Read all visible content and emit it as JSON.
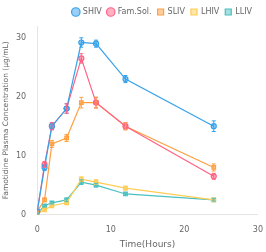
{
  "chart_data": {
    "type": "line",
    "xlabel": "Time(Hours)",
    "ylabel": "Famotidine Plasma Concentration (μg/mL)",
    "xlim": [
      0,
      30
    ],
    "ylim": [
      0,
      32
    ],
    "xticks": [
      0,
      10,
      20,
      30
    ],
    "yticks": [
      0,
      10,
      20,
      30
    ],
    "grid": false,
    "legend": "upper right",
    "x": [
      0,
      1,
      2,
      4,
      6,
      8,
      12,
      24
    ],
    "series": [
      {
        "name": "SHIV",
        "marker": "circle",
        "values": [
          0.5,
          8.0,
          15.0,
          18.0,
          29.2,
          29.0,
          23.0,
          15.0
        ],
        "yerr": [
          0.1,
          0.5,
          0.6,
          0.8,
          0.8,
          0.6,
          0.6,
          0.9
        ]
      },
      {
        "name": "Fam.Sol.",
        "marker": "circle",
        "values": [
          0.5,
          8.5,
          15.0,
          18.0,
          26.5,
          19.0,
          15.0,
          6.5
        ],
        "yerr": [
          0.1,
          0.5,
          0.6,
          0.8,
          0.8,
          0.9,
          0.6,
          0.5
        ]
      },
      {
        "name": "SLIV",
        "marker": "square",
        "values": [
          0.5,
          2.5,
          12.0,
          13.0,
          19.0,
          19.0,
          15.0,
          8.0
        ],
        "yerr": [
          0.1,
          0.3,
          0.6,
          0.6,
          0.9,
          0.9,
          0.6,
          0.6
        ]
      },
      {
        "name": "LHIV",
        "marker": "square",
        "values": [
          0.2,
          0.8,
          1.5,
          2.0,
          6.0,
          5.5,
          4.5,
          2.5
        ],
        "yerr": [
          0.1,
          0.2,
          0.2,
          0.3,
          0.4,
          0.4,
          0.3,
          0.2
        ]
      },
      {
        "name": "LLIV",
        "marker": "square",
        "values": [
          0.2,
          1.5,
          2.0,
          2.5,
          5.5,
          5.0,
          3.5,
          2.5
        ],
        "yerr": [
          0.1,
          0.2,
          0.2,
          0.3,
          0.4,
          0.3,
          0.2,
          0.2
        ]
      }
    ]
  }
}
